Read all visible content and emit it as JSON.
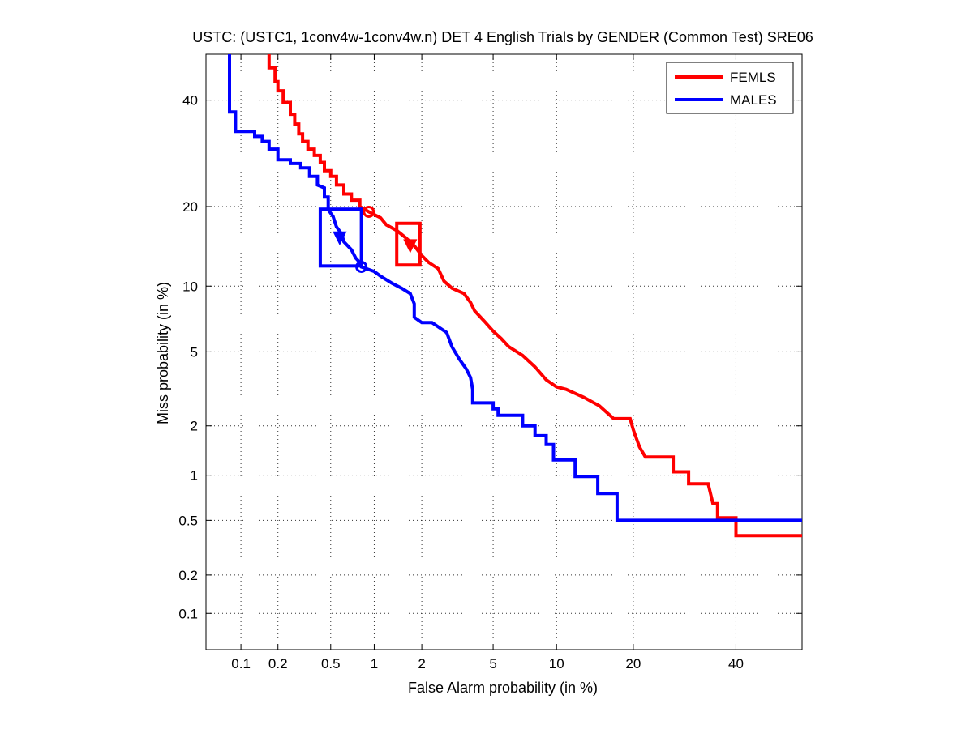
{
  "chart_data": {
    "type": "line",
    "scale": "normal-deviate (DET)",
    "title": "USTC: (USTC1, 1conv4w-1conv4w.n) DET 4 English Trials by GENDER (Common Test) SRE06",
    "xlabel": "False Alarm probability (in %)",
    "ylabel": "Miss probability (in %)",
    "xlim": [
      0.05,
      55
    ],
    "ylim": [
      0.05,
      50
    ],
    "xticks": [
      0.1,
      0.2,
      0.5,
      1,
      2,
      5,
      10,
      20,
      40
    ],
    "xtick_labels": [
      "0.1",
      "0.2",
      "0.5",
      "1",
      "2",
      "5",
      "10",
      "20",
      "40"
    ],
    "yticks": [
      0.1,
      0.2,
      0.5,
      1,
      2,
      5,
      10,
      20,
      40
    ],
    "ytick_labels": [
      "0.1",
      "0.2",
      "0.5",
      "1",
      "2",
      "5",
      "10",
      "20",
      "40"
    ],
    "grid": true,
    "legend_position": "top-right",
    "series": [
      {
        "name": "FEMLS",
        "color": "#ff0000",
        "points": [
          [
            0.17,
            50
          ],
          [
            0.17,
            47
          ],
          [
            0.19,
            47
          ],
          [
            0.19,
            44
          ],
          [
            0.2,
            44
          ],
          [
            0.2,
            42
          ],
          [
            0.22,
            42
          ],
          [
            0.22,
            39.5
          ],
          [
            0.25,
            39.5
          ],
          [
            0.25,
            37
          ],
          [
            0.27,
            37
          ],
          [
            0.27,
            35
          ],
          [
            0.29,
            35
          ],
          [
            0.29,
            33
          ],
          [
            0.31,
            33
          ],
          [
            0.31,
            31.5
          ],
          [
            0.34,
            31.5
          ],
          [
            0.34,
            30
          ],
          [
            0.38,
            30
          ],
          [
            0.38,
            28.8
          ],
          [
            0.42,
            28.8
          ],
          [
            0.42,
            27.5
          ],
          [
            0.45,
            27.5
          ],
          [
            0.45,
            26
          ],
          [
            0.5,
            26
          ],
          [
            0.5,
            25
          ],
          [
            0.55,
            25
          ],
          [
            0.55,
            23.5
          ],
          [
            0.62,
            23.5
          ],
          [
            0.62,
            22
          ],
          [
            0.7,
            22
          ],
          [
            0.7,
            21
          ],
          [
            0.8,
            21
          ],
          [
            0.8,
            20
          ],
          [
            0.92,
            19.2
          ],
          [
            1.1,
            18.3
          ],
          [
            1.2,
            17.3
          ],
          [
            1.4,
            16.5
          ],
          [
            1.6,
            15.5
          ],
          [
            1.8,
            14.5
          ],
          [
            2,
            13.3
          ],
          [
            2.2,
            12.5
          ],
          [
            2.5,
            11.8
          ],
          [
            2.7,
            10.5
          ],
          [
            3,
            9.8
          ],
          [
            3.5,
            9.3
          ],
          [
            3.8,
            8.5
          ],
          [
            4,
            7.8
          ],
          [
            4.5,
            7
          ],
          [
            5,
            6.3
          ],
          [
            5.5,
            5.8
          ],
          [
            6,
            5.3
          ],
          [
            7,
            4.8
          ],
          [
            8,
            4.2
          ],
          [
            9,
            3.6
          ],
          [
            10,
            3.3
          ],
          [
            11,
            3.2
          ],
          [
            13,
            2.9
          ],
          [
            15,
            2.6
          ],
          [
            17,
            2.2
          ],
          [
            19.5,
            2.2
          ],
          [
            20,
            1.9
          ],
          [
            21,
            1.5
          ],
          [
            22,
            1.3
          ],
          [
            27,
            1.3
          ],
          [
            27,
            1.05
          ],
          [
            30,
            1.05
          ],
          [
            30,
            0.88
          ],
          [
            34,
            0.88
          ],
          [
            35,
            0.65
          ],
          [
            36,
            0.65
          ],
          [
            36,
            0.52
          ],
          [
            40,
            0.52
          ],
          [
            40,
            0.39
          ],
          [
            55,
            0.39
          ]
        ],
        "marker_circle": [
          0.92,
          19.2
        ],
        "marker_triangle": [
          1.7,
          14.5
        ],
        "confidence_box": {
          "x": [
            1.4,
            1.95
          ],
          "y": [
            12.2,
            17.5
          ]
        }
      },
      {
        "name": "MALES",
        "color": "#0000ff",
        "points": [
          [
            0.08,
            50
          ],
          [
            0.08,
            37.5
          ],
          [
            0.09,
            37.5
          ],
          [
            0.09,
            33.5
          ],
          [
            0.13,
            33.5
          ],
          [
            0.13,
            32.5
          ],
          [
            0.15,
            32.5
          ],
          [
            0.15,
            31.5
          ],
          [
            0.17,
            31.5
          ],
          [
            0.17,
            30
          ],
          [
            0.2,
            30
          ],
          [
            0.2,
            28
          ],
          [
            0.25,
            28
          ],
          [
            0.25,
            27.3
          ],
          [
            0.3,
            27.3
          ],
          [
            0.3,
            26.5
          ],
          [
            0.35,
            26.5
          ],
          [
            0.35,
            25
          ],
          [
            0.4,
            25
          ],
          [
            0.4,
            23.5
          ],
          [
            0.45,
            23
          ],
          [
            0.45,
            21.5
          ],
          [
            0.48,
            21.5
          ],
          [
            0.48,
            19.5
          ],
          [
            0.52,
            18.5
          ],
          [
            0.55,
            17
          ],
          [
            0.6,
            16
          ],
          [
            0.62,
            15
          ],
          [
            0.7,
            14
          ],
          [
            0.75,
            13
          ],
          [
            0.8,
            12.5
          ],
          [
            0.82,
            12
          ],
          [
            1,
            11.5
          ],
          [
            1.1,
            11
          ],
          [
            1.3,
            10.3
          ],
          [
            1.5,
            9.8
          ],
          [
            1.7,
            9.3
          ],
          [
            1.8,
            8.4
          ],
          [
            1.8,
            7.3
          ],
          [
            2,
            6.9
          ],
          [
            2.3,
            6.9
          ],
          [
            2.5,
            6.6
          ],
          [
            2.8,
            6.2
          ],
          [
            3,
            5.3
          ],
          [
            3.3,
            4.6
          ],
          [
            3.6,
            4.1
          ],
          [
            3.8,
            3.7
          ],
          [
            3.9,
            3.2
          ],
          [
            3.9,
            2.7
          ],
          [
            5,
            2.7
          ],
          [
            5,
            2.5
          ],
          [
            5.3,
            2.5
          ],
          [
            5.3,
            2.3
          ],
          [
            7,
            2.3
          ],
          [
            7,
            2.0
          ],
          [
            8,
            2.0
          ],
          [
            8,
            1.75
          ],
          [
            9,
            1.75
          ],
          [
            9,
            1.55
          ],
          [
            9.7,
            1.55
          ],
          [
            9.7,
            1.25
          ],
          [
            12,
            1.25
          ],
          [
            12,
            0.98
          ],
          [
            14.8,
            0.98
          ],
          [
            14.8,
            0.76
          ],
          [
            17.5,
            0.76
          ],
          [
            17.5,
            0.5
          ],
          [
            55,
            0.5
          ]
        ],
        "marker_circle": [
          0.82,
          12
        ],
        "marker_triangle": [
          0.58,
          15.5
        ],
        "confidence_box": {
          "x": [
            0.42,
            0.82
          ],
          "y": [
            12.1,
            19.6
          ]
        }
      }
    ]
  }
}
